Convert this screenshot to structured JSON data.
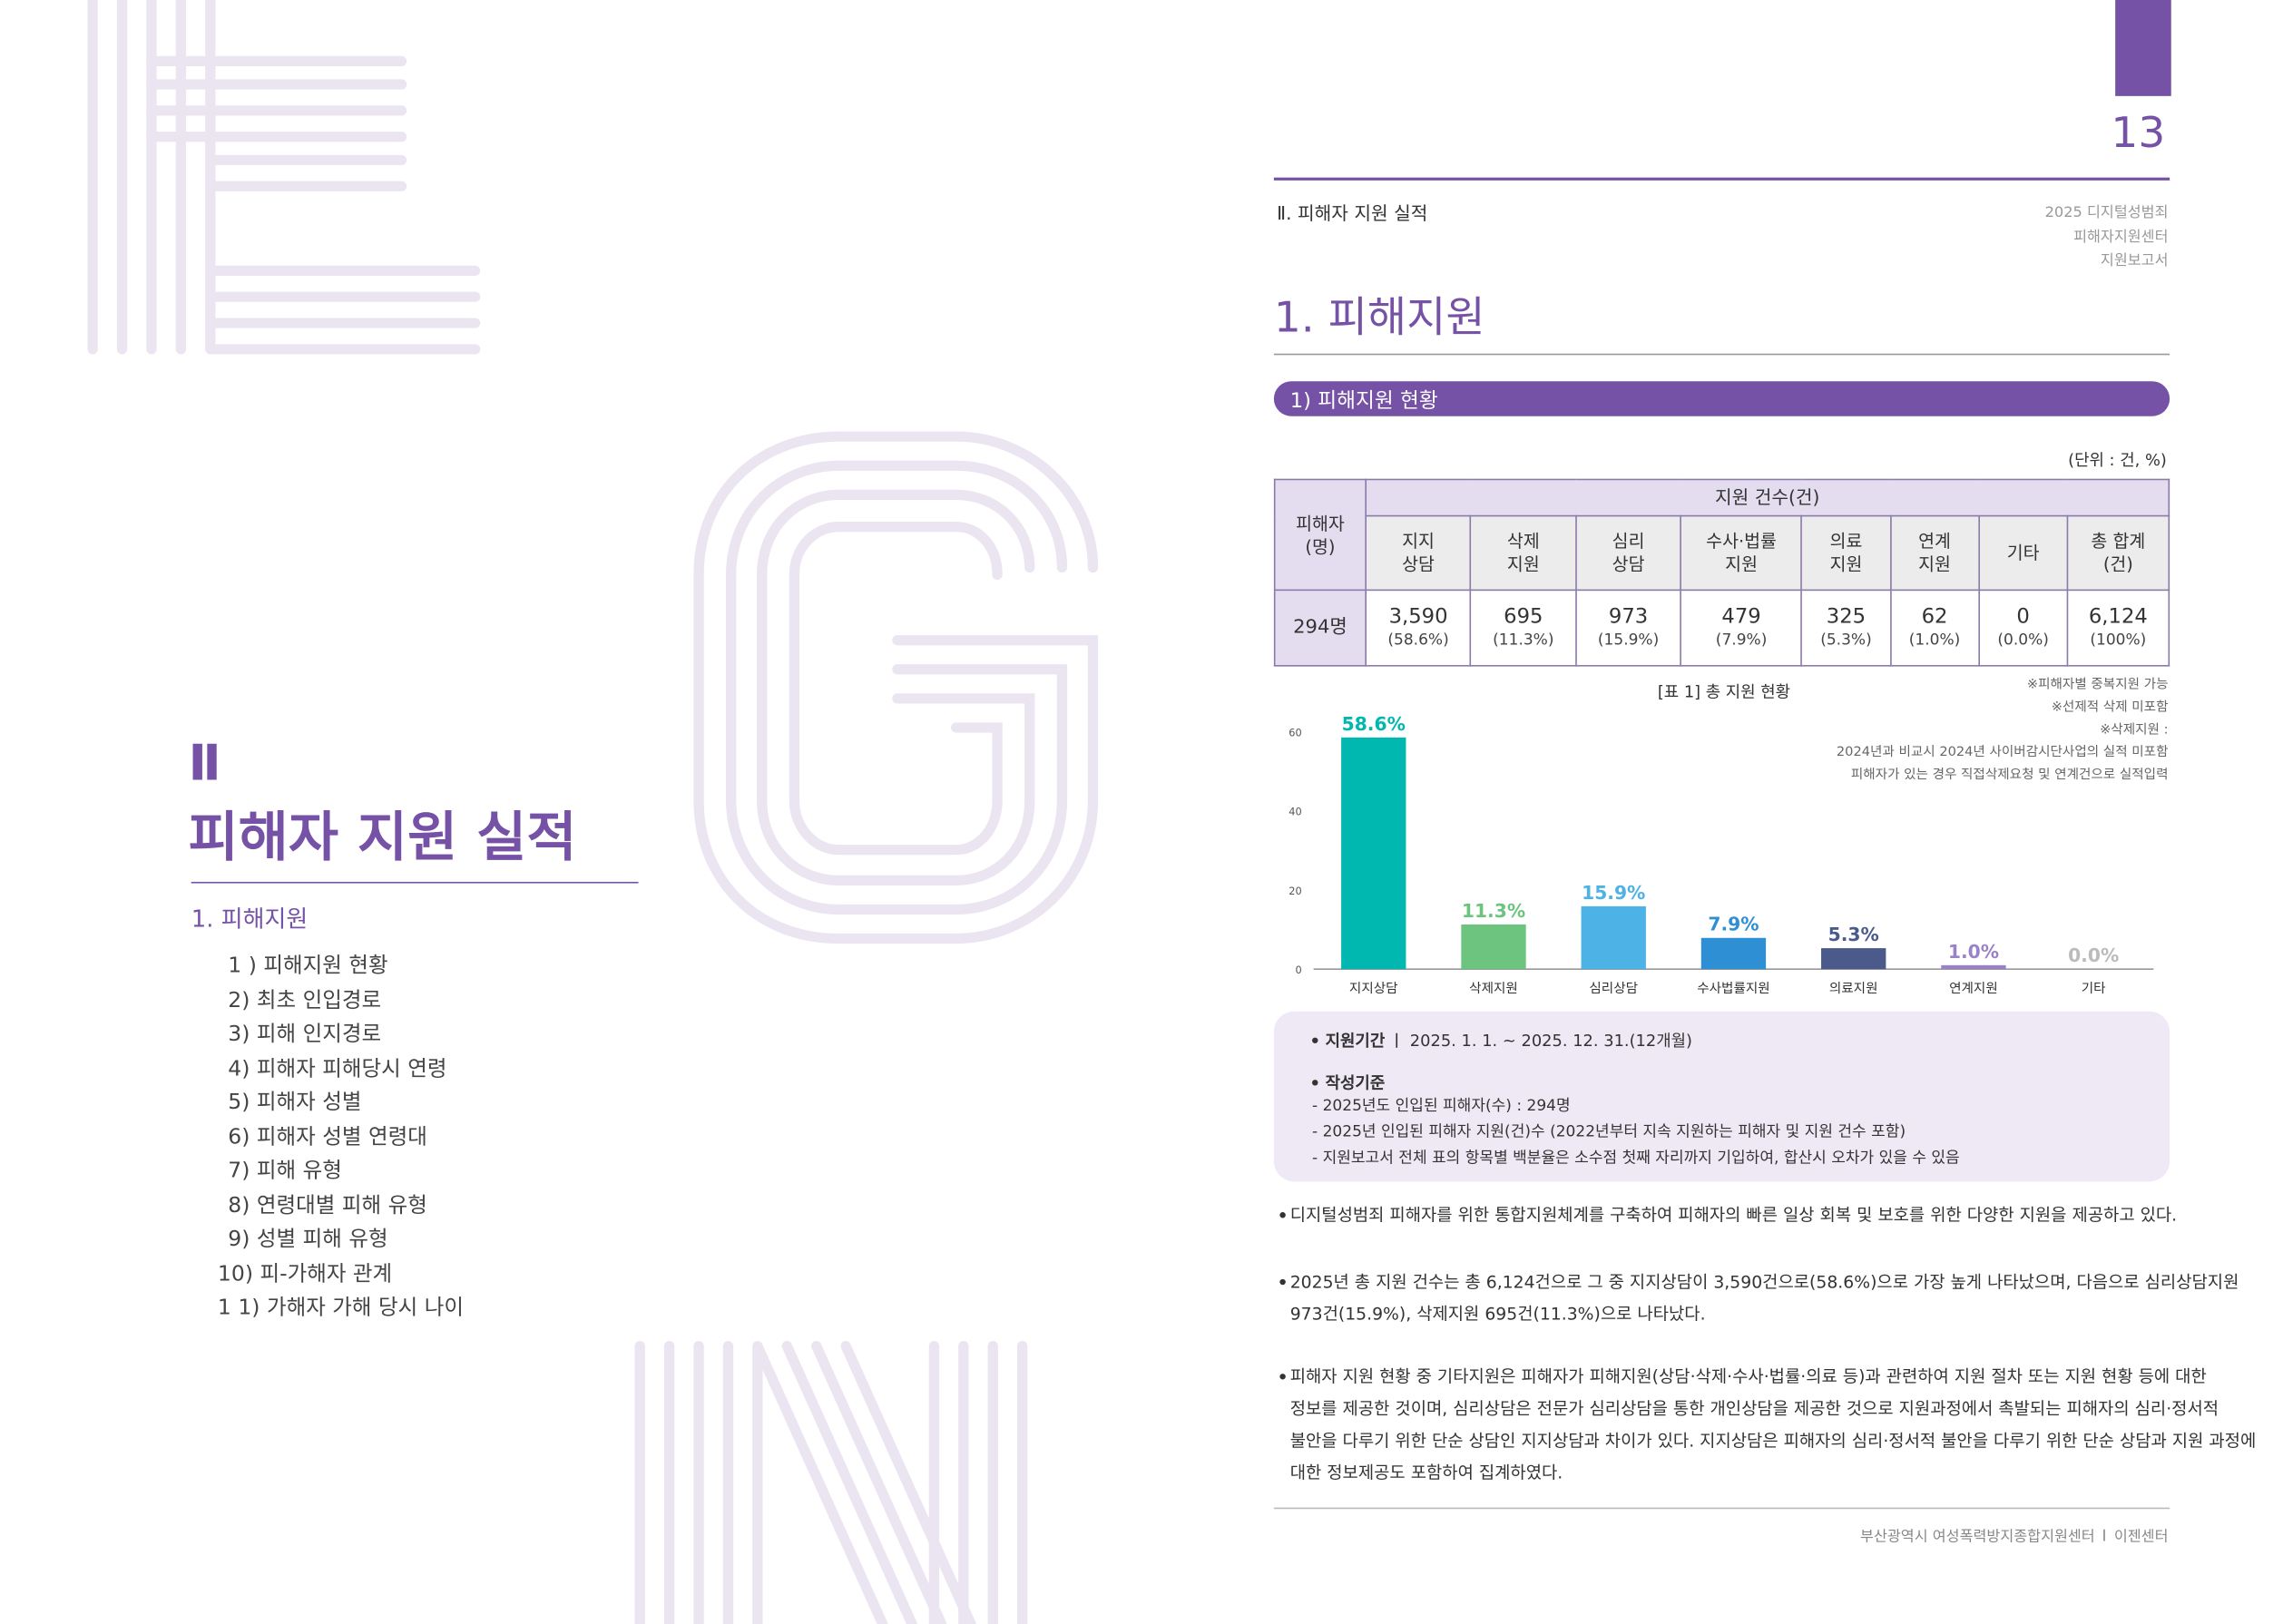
{
  "left": {
    "roman": "Ⅱ",
    "title": "피해자 지원 실적",
    "section": "1. 피해지원",
    "toc": [
      "1 ) 피해지원 현황",
      "2) 최초 인입경로",
      "3) 피해 인지경로",
      "4) 피해자 피해당시 연령",
      "5) 피해자 성별",
      "6) 피해자 성별 연령대",
      "7) 피해 유형",
      "8) 연령대별 피해 유형",
      "9) 성별 피해 유형",
      "10) 피-가해자 관계",
      "1 1) 가해자 가해 당시 나이"
    ]
  },
  "header": {
    "page": "13",
    "section": "Ⅱ. 피해자 지원 실적",
    "report": [
      "2025 디지털성범죄",
      "피해자지원센터",
      "지원보고서"
    ]
  },
  "heading": "1. 피해지원",
  "subheading": "1) 피해지원 현황",
  "unit": "(단위 : 건, %)",
  "table": {
    "row_header": [
      "피해자",
      "(명)"
    ],
    "group_header": "지원 건수(건)",
    "columns": [
      [
        "지지",
        "상담"
      ],
      [
        "삭제",
        "지원"
      ],
      [
        "심리",
        "상담"
      ],
      [
        "수사·법률",
        "지원"
      ],
      [
        "의료",
        "지원"
      ],
      [
        "연계",
        "지원"
      ],
      [
        "기타"
      ],
      [
        "총 합계",
        "(건)"
      ]
    ],
    "row_label": "294명",
    "cells": [
      [
        "3,590",
        "(58.6%)"
      ],
      [
        "695",
        "(11.3%)"
      ],
      [
        "973",
        "(15.9%)"
      ],
      [
        "479",
        "(7.9%)"
      ],
      [
        "325",
        "(5.3%)"
      ],
      [
        "62",
        "(1.0%)"
      ],
      [
        "0",
        "(0.0%)"
      ],
      [
        "6,124",
        "(100%)"
      ]
    ]
  },
  "chart_data": {
    "type": "bar",
    "title": "[표 1] 총 지원 현황",
    "categories": [
      "지지상담",
      "삭제지원",
      "심리상담",
      "수사법률지원",
      "의료지원",
      "연계지원",
      "기타"
    ],
    "values": [
      58.6,
      11.3,
      15.9,
      7.9,
      5.3,
      1.0,
      0.0
    ],
    "value_labels": [
      "58.6%",
      "11.3%",
      "15.9%",
      "7.9%",
      "5.3%",
      "1.0%",
      "0.0%"
    ],
    "colors": [
      "#00b8b0",
      "#6cc47f",
      "#4db2e6",
      "#2e8fd4",
      "#4a5a8a",
      "#9a82c6",
      "#bbbbbb"
    ],
    "ylim": [
      0,
      60
    ],
    "yticks": [
      0,
      20,
      40,
      60
    ],
    "grid": false,
    "notes": [
      "※피해자별 중복지원 가능",
      "※선제적 삭제 미포함",
      "※삭제지원 :",
      "2024년과 비교시 2024년 사이버감시단사업의 실적 미포함",
      "피해자가 있는 경우 직접삭제요청 및 연계건으로 실적입력"
    ]
  },
  "info": {
    "period_label": "지원기간",
    "period": "2025. 1. 1. ~ 2025. 12. 31.(12개월)",
    "criteria_label": "작성기준",
    "criteria": [
      "- 2025년도 인입된 피해자(수) : 294명",
      "- 2025년 인입된 피해자 지원(건)수 (2022년부터 지속 지원하는 피해자 및 지원 건수 포함)",
      "- 지원보고서 전체 표의 항목별 백분율은 소수점 첫째 자리까지 기입하여, 합산시 오차가 있을 수 있음"
    ]
  },
  "paragraphs": [
    [
      "디지털성범죄 피해자를 위한 통합지원체계를 구축하여 피해자의 빠른 일상 회복 및 보호를 위한 다양한 지원을 제공하고 있다."
    ],
    [
      "2025년 총 지원 건수는 총 6,124건으로 그 중 지지상담이 3,590건으로(58.6%)으로 가장 높게 나타났으며, 다음으로 심리상담지원",
      "973건(15.9%), 삭제지원 695건(11.3%)으로 나타났다."
    ],
    [
      "피해자 지원 현황 중 기타지원은 피해자가 피해지원(상담·삭제·수사·법률·의료 등)과 관련하여 지원 절차 또는 지원 현황 등에 대한",
      "정보를 제공한 것이며, 심리상담은 전문가 심리상담을 통한 개인상담을 제공한 것으로 지원과정에서 촉발되는 피해자의 심리·정서적",
      "불안을 다루기 위한 단순 상담인 지지상담과 차이가 있다. 지지상담은 피해자의 심리·정서적 불안을 다루기 위한 단순 상담과 지원 과정에",
      "대한 정보제공도 포함하여 집계하였다."
    ]
  ],
  "footer": [
    "부산광역시 여성폭력방지종합지원센터",
    "이젠센터"
  ]
}
